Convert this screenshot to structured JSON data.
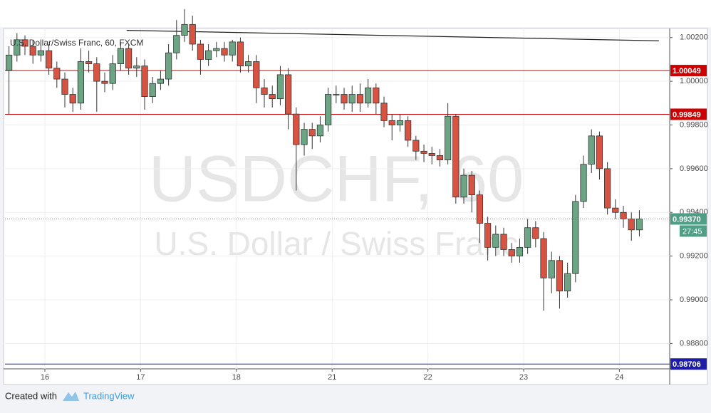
{
  "chart_data": {
    "type": "candlestick",
    "title": "U.S. Dollar/Swiss Franc, 60, FXCM",
    "watermark": "USDCHF, 60",
    "watermark_subtitle": "U.S. Dollar / Swiss Franc",
    "up_color": "#6ba583",
    "down_color": "#d75442",
    "x": [
      0,
      2,
      4,
      6,
      8,
      10,
      12,
      14,
      16,
      18,
      20,
      22,
      24,
      26,
      28,
      30,
      32,
      34,
      36,
      38,
      40,
      42,
      44,
      46,
      48,
      50,
      52,
      54,
      56,
      58,
      60,
      62,
      64,
      66,
      68,
      70,
      72,
      74,
      76,
      78,
      80,
      82,
      84,
      86,
      88,
      90,
      92,
      94,
      96,
      98,
      100,
      102,
      104,
      106,
      108,
      110,
      112,
      114,
      116,
      118,
      120,
      122,
      124,
      126,
      128,
      130,
      132,
      134,
      136,
      138,
      140,
      142,
      144,
      146,
      148,
      150,
      152,
      154,
      156,
      158
    ],
    "open": [
      1.0005,
      1.0012,
      1.0019,
      1.0016,
      1.0012,
      1.0014,
      1.0006,
      1.0001,
      0.9994,
      0.999,
      1.0009,
      1.0008,
      1.0,
      0.9999,
      1.0008,
      1.0015,
      1.0006,
      1.0007,
      0.9993,
      0.9999,
      1.0001,
      1.0013,
      1.0021,
      1.0026,
      1.0017,
      1.001,
      1.0014,
      1.0015,
      1.0012,
      1.0018,
      1.0007,
      1.0009,
      0.9997,
      0.9994,
      0.9992,
      1.0003,
      0.9985,
      0.9971,
      0.9978,
      0.9975,
      0.998,
      0.9994,
      0.9994,
      0.999,
      0.9994,
      0.999,
      0.9997,
      0.999,
      0.9982,
      0.998,
      0.9982,
      0.9973,
      0.9968,
      0.9967,
      0.9966,
      0.9964,
      0.9984,
      0.9947,
      0.9957,
      0.9948,
      0.9935,
      0.9924,
      0.993,
      0.9923,
      0.992,
      0.9924,
      0.9933,
      0.9928,
      0.991,
      0.9918,
      0.9904,
      0.9912,
      0.9945,
      0.9962,
      0.9975,
      0.996,
      0.9942,
      0.994,
      0.9937,
      0.9932
    ],
    "high": [
      1.0016,
      1.0022,
      1.0021,
      1.0019,
      1.0017,
      1.0017,
      1.0009,
      1.0004,
      0.9997,
      1.0015,
      1.0014,
      1.0011,
      1.0004,
      1.0012,
      1.0018,
      1.0017,
      1.0011,
      1.001,
      1.0002,
      1.0005,
      1.0017,
      1.0028,
      1.0033,
      1.003,
      1.0019,
      1.0017,
      1.0018,
      1.0018,
      1.0019,
      1.002,
      1.0012,
      1.0012,
      1.0001,
      0.9998,
      1.0007,
      1.0006,
      0.9988,
      0.9981,
      0.9981,
      0.9984,
      0.9997,
      0.9998,
      0.9997,
      0.9998,
      0.9999,
      1.0001,
      0.9999,
      0.9993,
      0.9985,
      0.9985,
      0.9984,
      0.9975,
      0.9971,
      0.997,
      0.9969,
      0.999,
      0.9985,
      0.996,
      0.9959,
      0.995,
      0.9938,
      0.9934,
      0.9933,
      0.9926,
      0.9928,
      0.9937,
      0.9936,
      0.9931,
      0.9922,
      0.992,
      0.9917,
      0.9948,
      0.9966,
      0.9978,
      0.9977,
      0.9963,
      0.9946,
      0.9943,
      0.994,
      0.9941
    ],
    "low": [
      0.9985,
      1.0009,
      1.0012,
      1.0008,
      1.0009,
      1.0003,
      0.9997,
      0.9988,
      0.9986,
      0.9987,
      1.0004,
      0.9986,
      0.9995,
      0.9996,
      1.0005,
      1.0003,
      1.0002,
      0.9987,
      0.999,
      0.9996,
      0.9998,
      1.001,
      1.0018,
      1.0014,
      1.0003,
      1.0007,
      1.0011,
      1.0009,
      1.0009,
      1.0004,
      1.0004,
      0.999,
      0.9988,
      0.9988,
      0.9989,
      0.9978,
      0.995,
      0.9966,
      0.9969,
      0.9972,
      0.9977,
      0.999,
      0.9987,
      0.9986,
      0.9986,
      0.9988,
      0.9985,
      0.9979,
      0.9973,
      0.9977,
      0.997,
      0.9964,
      0.9963,
      0.9962,
      0.9961,
      0.9962,
      0.9944,
      0.9944,
      0.994,
      0.9926,
      0.9918,
      0.992,
      0.992,
      0.9917,
      0.9917,
      0.9921,
      0.9924,
      0.9895,
      0.9903,
      0.9896,
      0.9901,
      0.9908,
      0.9942,
      0.9958,
      0.9955,
      0.9939,
      0.9937,
      0.9933,
      0.9927,
      0.9929
    ],
    "close": [
      1.0012,
      1.0019,
      1.0016,
      1.0012,
      1.0014,
      1.0006,
      1.0001,
      0.9994,
      0.999,
      1.0009,
      1.0008,
      1.0,
      0.9999,
      1.0008,
      1.0015,
      1.0006,
      1.0007,
      0.9993,
      0.9999,
      1.0001,
      1.0013,
      1.0021,
      1.0026,
      1.0017,
      1.001,
      1.0014,
      1.0015,
      1.0012,
      1.0018,
      1.0007,
      1.0009,
      0.9997,
      0.9994,
      0.9992,
      1.0003,
      0.9985,
      0.9971,
      0.9978,
      0.9975,
      0.998,
      0.9994,
      0.9994,
      0.999,
      0.9994,
      0.999,
      0.9997,
      0.999,
      0.9982,
      0.998,
      0.9982,
      0.9973,
      0.9968,
      0.9967,
      0.9966,
      0.9964,
      0.9984,
      0.9947,
      0.9957,
      0.9948,
      0.9935,
      0.9924,
      0.993,
      0.9923,
      0.992,
      0.9924,
      0.9933,
      0.9928,
      0.991,
      0.9918,
      0.9904,
      0.9912,
      0.9945,
      0.9962,
      0.9975,
      0.996,
      0.9942,
      0.994,
      0.9937,
      0.9932,
      0.9937
    ],
    "xlim": [
      -1,
      165.6
    ],
    "xticks": [
      {
        "value": 9,
        "label": "16"
      },
      {
        "value": 33,
        "label": "17"
      },
      {
        "value": 57,
        "label": "18"
      },
      {
        "value": 81,
        "label": "21"
      },
      {
        "value": 105,
        "label": "22"
      },
      {
        "value": 129,
        "label": "23"
      },
      {
        "value": 153,
        "label": "24"
      }
    ],
    "ylim": [
      0.98684,
      1.00235
    ],
    "yticks": [
      {
        "value": 1.002,
        "label": "1.00200"
      },
      {
        "value": 1.0,
        "label": "1.00000"
      },
      {
        "value": 0.998,
        "label": "0.99800"
      },
      {
        "value": 0.996,
        "label": "0.99600"
      },
      {
        "value": 0.994,
        "label": "0.99400"
      },
      {
        "value": 0.992,
        "label": "0.99200"
      },
      {
        "value": 0.99,
        "label": "0.99000"
      },
      {
        "value": 0.988,
        "label": "0.98800"
      }
    ],
    "grid": true,
    "trend_line": {
      "x": [
        29.5,
        162.9
      ],
      "y": [
        1.00233,
        1.00185
      ],
      "color": "#222222"
    },
    "price_levels": [
      {
        "value": 1.00049,
        "label": "1.00049",
        "color": "#cc0000"
      },
      {
        "value": 0.99849,
        "label": "0.99849",
        "color": "#cc0000"
      },
      {
        "value": 0.98706,
        "label": "0.98706",
        "color": "#1c1ca8"
      }
    ],
    "last_price": {
      "value": 0.9937,
      "label": "0.99370",
      "countdown": "27:45",
      "color": "#4f9e86"
    }
  },
  "footer": {
    "created_with": "Created with",
    "brand": "TradingView"
  }
}
